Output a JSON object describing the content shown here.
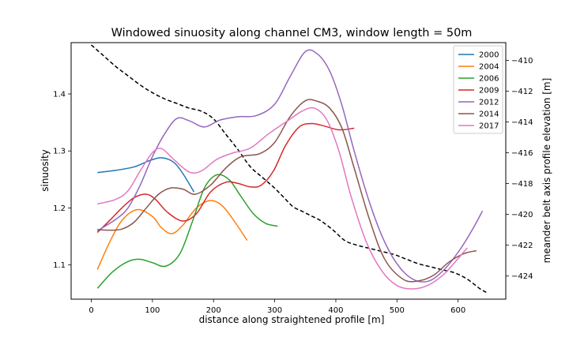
{
  "chart_data": {
    "type": "line",
    "title": "Windowed sinuosity along channel CM3, window length = 50m",
    "xlabel": "distance along straightened profile [m]",
    "ylabel": "sinuosity",
    "y2label": "meander belt axis profile elevation [m]",
    "xlim": [
      -33,
      678
    ],
    "ylim": [
      1.04,
      1.49
    ],
    "y2lim": [
      -425.5,
      -408.85
    ],
    "xticks": [
      0,
      100,
      200,
      300,
      400,
      500,
      600
    ],
    "yticks": [
      1.1,
      1.2,
      1.3,
      1.4
    ],
    "y2ticks": [
      -424,
      -422,
      -420,
      -418,
      -416,
      -414,
      -412,
      -410
    ],
    "legend_position": "top-right",
    "series": [
      {
        "name": "2000",
        "color": "#1f77b4",
        "points": [
          [
            10,
            1.262
          ],
          [
            40,
            1.266
          ],
          [
            70,
            1.272
          ],
          [
            95,
            1.283
          ],
          [
            115,
            1.288
          ],
          [
            135,
            1.28
          ],
          [
            150,
            1.26
          ],
          [
            168,
            1.228
          ]
        ]
      },
      {
        "name": "2004",
        "color": "#ff7f0e",
        "points": [
          [
            10,
            1.092
          ],
          [
            30,
            1.14
          ],
          [
            50,
            1.178
          ],
          [
            75,
            1.197
          ],
          [
            100,
            1.185
          ],
          [
            115,
            1.165
          ],
          [
            132,
            1.155
          ],
          [
            150,
            1.17
          ],
          [
            172,
            1.2
          ],
          [
            195,
            1.213
          ],
          [
            215,
            1.203
          ],
          [
            235,
            1.175
          ],
          [
            255,
            1.143
          ]
        ]
      },
      {
        "name": "2006",
        "color": "#2ca02c",
        "points": [
          [
            10,
            1.059
          ],
          [
            35,
            1.088
          ],
          [
            60,
            1.106
          ],
          [
            80,
            1.11
          ],
          [
            100,
            1.104
          ],
          [
            122,
            1.098
          ],
          [
            145,
            1.12
          ],
          [
            165,
            1.175
          ],
          [
            185,
            1.235
          ],
          [
            205,
            1.258
          ],
          [
            225,
            1.25
          ],
          [
            245,
            1.22
          ],
          [
            265,
            1.19
          ],
          [
            285,
            1.173
          ],
          [
            305,
            1.168
          ]
        ]
      },
      {
        "name": "2009",
        "color": "#d62728",
        "points": [
          [
            10,
            1.157
          ],
          [
            30,
            1.178
          ],
          [
            50,
            1.2
          ],
          [
            70,
            1.218
          ],
          [
            90,
            1.224
          ],
          [
            105,
            1.215
          ],
          [
            125,
            1.192
          ],
          [
            150,
            1.177
          ],
          [
            172,
            1.19
          ],
          [
            195,
            1.228
          ],
          [
            220,
            1.245
          ],
          [
            240,
            1.243
          ],
          [
            260,
            1.237
          ],
          [
            278,
            1.24
          ],
          [
            298,
            1.265
          ],
          [
            318,
            1.31
          ],
          [
            340,
            1.342
          ],
          [
            360,
            1.348
          ],
          [
            380,
            1.344
          ],
          [
            405,
            1.337
          ],
          [
            430,
            1.34
          ]
        ]
      },
      {
        "name": "2012",
        "color": "#9467bd",
        "points": [
          [
            10,
            1.16
          ],
          [
            40,
            1.18
          ],
          [
            60,
            1.2
          ],
          [
            80,
            1.24
          ],
          [
            100,
            1.29
          ],
          [
            120,
            1.33
          ],
          [
            140,
            1.357
          ],
          [
            160,
            1.353
          ],
          [
            185,
            1.342
          ],
          [
            210,
            1.354
          ],
          [
            240,
            1.36
          ],
          [
            270,
            1.362
          ],
          [
            300,
            1.382
          ],
          [
            325,
            1.43
          ],
          [
            350,
            1.474
          ],
          [
            370,
            1.47
          ],
          [
            390,
            1.44
          ],
          [
            410,
            1.38
          ],
          [
            430,
            1.3
          ],
          [
            455,
            1.21
          ],
          [
            480,
            1.14
          ],
          [
            505,
            1.095
          ],
          [
            530,
            1.073
          ],
          [
            555,
            1.073
          ],
          [
            580,
            1.095
          ],
          [
            605,
            1.13
          ],
          [
            625,
            1.165
          ],
          [
            640,
            1.195
          ]
        ]
      },
      {
        "name": "2014",
        "color": "#8c564b",
        "points": [
          [
            10,
            1.162
          ],
          [
            30,
            1.161
          ],
          [
            50,
            1.163
          ],
          [
            70,
            1.175
          ],
          [
            90,
            1.2
          ],
          [
            110,
            1.224
          ],
          [
            130,
            1.235
          ],
          [
            150,
            1.233
          ],
          [
            170,
            1.224
          ],
          [
            195,
            1.24
          ],
          [
            220,
            1.27
          ],
          [
            245,
            1.29
          ],
          [
            275,
            1.295
          ],
          [
            300,
            1.315
          ],
          [
            325,
            1.36
          ],
          [
            350,
            1.388
          ],
          [
            370,
            1.387
          ],
          [
            390,
            1.375
          ],
          [
            410,
            1.34
          ],
          [
            430,
            1.27
          ],
          [
            455,
            1.18
          ],
          [
            480,
            1.11
          ],
          [
            510,
            1.075
          ],
          [
            535,
            1.072
          ],
          [
            560,
            1.082
          ],
          [
            585,
            1.105
          ],
          [
            610,
            1.12
          ],
          [
            630,
            1.125
          ]
        ]
      },
      {
        "name": "2017",
        "color": "#e377c2",
        "points": [
          [
            10,
            1.207
          ],
          [
            40,
            1.215
          ],
          [
            60,
            1.23
          ],
          [
            80,
            1.265
          ],
          [
            100,
            1.297
          ],
          [
            115,
            1.304
          ],
          [
            135,
            1.285
          ],
          [
            160,
            1.263
          ],
          [
            180,
            1.265
          ],
          [
            205,
            1.285
          ],
          [
            230,
            1.296
          ],
          [
            260,
            1.305
          ],
          [
            290,
            1.33
          ],
          [
            320,
            1.352
          ],
          [
            345,
            1.37
          ],
          [
            365,
            1.375
          ],
          [
            385,
            1.355
          ],
          [
            405,
            1.3
          ],
          [
            425,
            1.22
          ],
          [
            450,
            1.14
          ],
          [
            475,
            1.09
          ],
          [
            500,
            1.064
          ],
          [
            525,
            1.058
          ],
          [
            550,
            1.064
          ],
          [
            575,
            1.082
          ],
          [
            595,
            1.105
          ],
          [
            615,
            1.13
          ]
        ]
      }
    ],
    "profile_series": {
      "color": "#000000",
      "style": "dashed",
      "axis": "right",
      "points": [
        [
          0,
          -409.0
        ],
        [
          20,
          -409.7
        ],
        [
          40,
          -410.4
        ],
        [
          60,
          -411.0
        ],
        [
          80,
          -411.6
        ],
        [
          100,
          -412.1
        ],
        [
          120,
          -412.5
        ],
        [
          140,
          -412.8
        ],
        [
          160,
          -413.1
        ],
        [
          180,
          -413.3
        ],
        [
          200,
          -413.8
        ],
        [
          220,
          -414.8
        ],
        [
          240,
          -415.8
        ],
        [
          260,
          -416.9
        ],
        [
          280,
          -417.6
        ],
        [
          300,
          -418.3
        ],
        [
          315,
          -418.9
        ],
        [
          330,
          -419.5
        ],
        [
          345,
          -419.8
        ],
        [
          360,
          -420.1
        ],
        [
          375,
          -420.4
        ],
        [
          395,
          -421.0
        ],
        [
          415,
          -421.7
        ],
        [
          435,
          -422.0
        ],
        [
          455,
          -422.2
        ],
        [
          475,
          -422.4
        ],
        [
          495,
          -422.6
        ],
        [
          515,
          -422.9
        ],
        [
          535,
          -423.2
        ],
        [
          555,
          -423.4
        ],
        [
          575,
          -423.6
        ],
        [
          595,
          -423.8
        ],
        [
          615,
          -424.2
        ],
        [
          635,
          -424.8
        ],
        [
          648,
          -425.1
        ]
      ]
    }
  }
}
